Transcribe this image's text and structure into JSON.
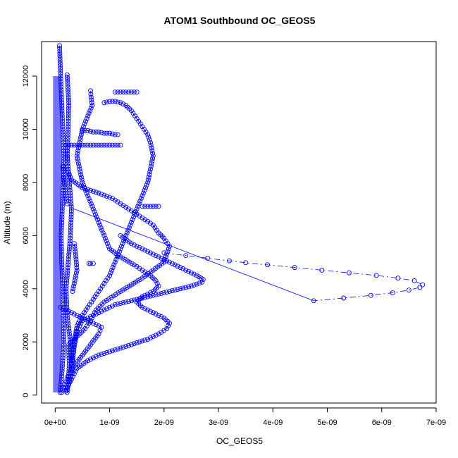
{
  "chart_data": {
    "type": "scatter",
    "title": "ATOM1 Southbound OC_GEOS5",
    "xlabel": "OC_GEOS5",
    "ylabel": "Altitude (m)",
    "xlim": [
      -2.5e-10,
      7e-09
    ],
    "ylim": [
      -300,
      13300
    ],
    "x_ticks": [
      0,
      1e-09,
      2e-09,
      3e-09,
      4e-09,
      5e-09,
      6e-09,
      7e-09
    ],
    "x_tick_labels": [
      "0e+00",
      "1e-09",
      "2e-09",
      "3e-09",
      "4e-09",
      "5e-09",
      "6e-09",
      "7e-09"
    ],
    "y_ticks": [
      0,
      2000,
      4000,
      6000,
      8000,
      10000,
      12000
    ],
    "y_tick_labels": [
      "0",
      "2000",
      "4000",
      "6000",
      "8000",
      "10000",
      "12000"
    ],
    "marker": "open-circle",
    "color": "#0000ff",
    "grid": false,
    "series": [
      {
        "x": [
          8e-11,
          1e-10,
          1.2e-10,
          1.4e-10,
          1.6e-10,
          1.5e-10,
          1.3e-10,
          1.1e-10,
          1.2e-10,
          1.4e-10,
          1.5e-10,
          1.6e-10,
          1.3e-10,
          1.1e-10,
          9e-11
        ],
        "y": [
          13150,
          12000,
          11000,
          10000,
          9000,
          8000,
          7000,
          6000,
          5000,
          4000,
          3000,
          2000,
          1000,
          500,
          100
        ]
      },
      {
        "x": [
          2.2e-10,
          2.5e-10,
          2.4e-10,
          2.2e-10,
          2.6e-10,
          3e-10,
          2.8e-10,
          2.4e-10,
          2e-10,
          2.2e-10,
          2.8e-10,
          3.2e-10,
          2.6e-10,
          2e-10
        ],
        "y": [
          12050,
          11000,
          10000,
          9000,
          8000,
          7000,
          6000,
          5000,
          4000,
          3000,
          2000,
          1000,
          500,
          150
        ]
      },
      {
        "x": [
          2e-10,
          3e-10,
          4e-10,
          5e-10,
          6e-10,
          7e-10,
          8e-10,
          9e-10,
          1e-09,
          1.1e-09,
          1.2e-09
        ],
        "y": [
          9400,
          9400,
          9400,
          9400,
          9400,
          9400,
          9400,
          9400,
          9400,
          9400,
          9400
        ]
      },
      {
        "x": [
          5e-10,
          6e-10,
          7e-10,
          8e-10,
          9e-10,
          1e-09,
          1.1e-09,
          1.15e-09
        ],
        "y": [
          9950,
          9950,
          9900,
          9900,
          9850,
          9850,
          9800,
          9800
        ]
      },
      {
        "x": [
          1.4e-10,
          1.5e-10,
          1.6e-10,
          1.7e-10,
          1.8e-10,
          1.9e-10,
          2e-10,
          2.2e-10
        ],
        "y": [
          8600,
          8400,
          8200,
          8000,
          7800,
          7600,
          7400,
          7200
        ]
      },
      {
        "x": [
          6.5e-10,
          6.6e-10,
          6.8e-10,
          6e-10,
          5e-10,
          4.5e-10,
          4e-10,
          4.5e-10,
          5e-10,
          6e-10,
          7e-10,
          8e-10,
          9e-10,
          1e-09,
          1.2e-09,
          1.45e-09,
          1.6e-09,
          1.75e-09,
          1.85e-09,
          1.9e-09,
          1.8e-09,
          1.6e-09,
          1.5e-09,
          1.6e-09,
          1.8e-09,
          2e-09,
          2.1e-09,
          2.05e-09,
          1.9e-09,
          1.7e-09,
          1.4e-09,
          1.1e-09,
          8e-10,
          6e-10,
          4e-10,
          3e-10,
          2e-10
        ],
        "y": [
          11450,
          11200,
          10900,
          10500,
          10000,
          9500,
          9000,
          8500,
          8000,
          7500,
          7000,
          6500,
          6000,
          5500,
          5200,
          4900,
          4700,
          4500,
          4300,
          4100,
          3900,
          3700,
          3500,
          3300,
          3100,
          2900,
          2700,
          2500,
          2300,
          2100,
          1900,
          1700,
          1500,
          1300,
          1000,
          600,
          200
        ]
      },
      {
        "x": [
          9e-10,
          1e-09,
          1.1e-09,
          1.2e-09,
          1.3e-09,
          1.4e-09,
          1.5e-09,
          1.6e-09,
          1.7e-09,
          1.75e-09,
          1.8e-09,
          1.75e-09,
          1.7e-09,
          1.6e-09,
          1.5e-09,
          1.4e-09,
          1.3e-09,
          1.2e-09,
          1.1e-09,
          1e-09,
          9e-10,
          8e-10,
          7e-10,
          6e-10,
          5e-10,
          4e-10,
          3.5e-10,
          3e-10
        ],
        "y": [
          11000,
          11050,
          11050,
          11000,
          10900,
          10700,
          10400,
          10100,
          9800,
          9500,
          9000,
          8500,
          8000,
          7500,
          7000,
          6500,
          6000,
          5500,
          5000,
          4500,
          4200,
          3900,
          3600,
          3300,
          3000,
          2600,
          2000,
          1200
        ]
      },
      {
        "x": [
          1.1e-09,
          1.2e-09,
          1.3e-09,
          1.4e-09,
          1.5e-09
        ],
        "y": [
          11400,
          11400,
          11400,
          11400,
          11400
        ]
      },
      {
        "x": [
          2.2e-10,
          2.3e-10,
          2.4e-10,
          3e-10,
          5e-10,
          8e-10,
          1.05e-09,
          1.2e-09,
          1.35e-09,
          1.5e-09,
          1.65e-09,
          1.8e-09,
          1.9e-09,
          2e-09,
          2.1e-09,
          2e-09,
          1.6e-09,
          1.2e-09,
          9e-10,
          7.5e-10,
          7e-10,
          6.5e-10,
          5.5e-10,
          4.5e-10,
          3.5e-10,
          2.5e-10,
          2.5e-10,
          2.6e-10,
          2.5e-10,
          2.4e-10,
          2.2e-10
        ],
        "y": [
          9200,
          8800,
          8400,
          8100,
          7800,
          7600,
          7400,
          7200,
          7000,
          6800,
          6600,
          6400,
          6100,
          5900,
          5600,
          5000,
          4400,
          3900,
          3500,
          3200,
          3000,
          2800,
          2500,
          2300,
          2100,
          1900,
          1600,
          1200,
          800,
          400,
          100
        ]
      },
      {
        "x": [
          1.6e-09,
          1.7e-09,
          1.8e-09,
          1.9e-09
        ],
        "y": [
          7100,
          7100,
          7100,
          7100
        ]
      },
      {
        "x": [
          1.2e-09,
          1.4e-09,
          1.6e-09,
          1.8e-09,
          2e-09,
          2.2e-09,
          2.4e-09,
          2.6e-09,
          2.72e-09,
          2.7e-09,
          2.5e-09,
          2.3e-09,
          2.1e-09,
          1.9e-09,
          1.7e-09,
          1.5e-09,
          1.3e-09,
          1.1e-09,
          9e-10,
          7e-10,
          5e-10,
          4e-10,
          3.5e-10,
          3e-10
        ],
        "y": [
          6000,
          5700,
          5500,
          5300,
          5100,
          4900,
          4700,
          4500,
          4350,
          4250,
          4100,
          4000,
          3900,
          3800,
          3700,
          3600,
          3500,
          3400,
          3200,
          3000,
          2800,
          2400,
          1800,
          1000
        ]
      },
      {
        "line": "dashdot",
        "x": [
          2e-09,
          2.4e-09,
          2.8e-09,
          3.2e-09,
          3.5e-09,
          3.9e-09,
          4.4e-09,
          4.9e-09,
          5.4e-09,
          5.9e-09,
          6.3e-09,
          6.6e-09,
          6.75e-09,
          6.7e-09,
          6.5e-09,
          6.2e-09,
          5.8e-09,
          5.3e-09,
          4.75e-09
        ],
        "y": [
          5350,
          5250,
          5150,
          5050,
          4980,
          4900,
          4800,
          4700,
          4600,
          4500,
          4400,
          4300,
          4150,
          4050,
          3950,
          3850,
          3750,
          3650,
          3550
        ]
      },
      {
        "line": "solid",
        "x": [
          4.75e-09,
          3.5e-10
        ],
        "y": [
          3550,
          7000
        ]
      },
      {
        "x": [
          1e-10,
          2e-10,
          3e-10,
          4e-10,
          5e-10,
          6e-10,
          7e-10,
          8e-10,
          8.5e-10,
          8e-10,
          6.5e-10,
          5e-10,
          3.5e-10,
          2.5e-10,
          2e-10,
          1.5e-10,
          1.2e-10
        ],
        "y": [
          3300,
          3200,
          3100,
          3000,
          2900,
          2800,
          2700,
          2600,
          2550,
          2300,
          1900,
          1500,
          1100,
          800,
          500,
          300,
          100
        ]
      },
      {
        "x": [
          3.5e-10,
          3.8e-10,
          4e-10,
          3.6e-10,
          3.2e-10
        ],
        "y": [
          5700,
          5200,
          4700,
          4300,
          3900
        ]
      },
      {
        "x": [
          6.2e-10,
          6.5e-10,
          7e-10
        ],
        "y": [
          4950,
          4950,
          4950
        ]
      }
    ]
  }
}
